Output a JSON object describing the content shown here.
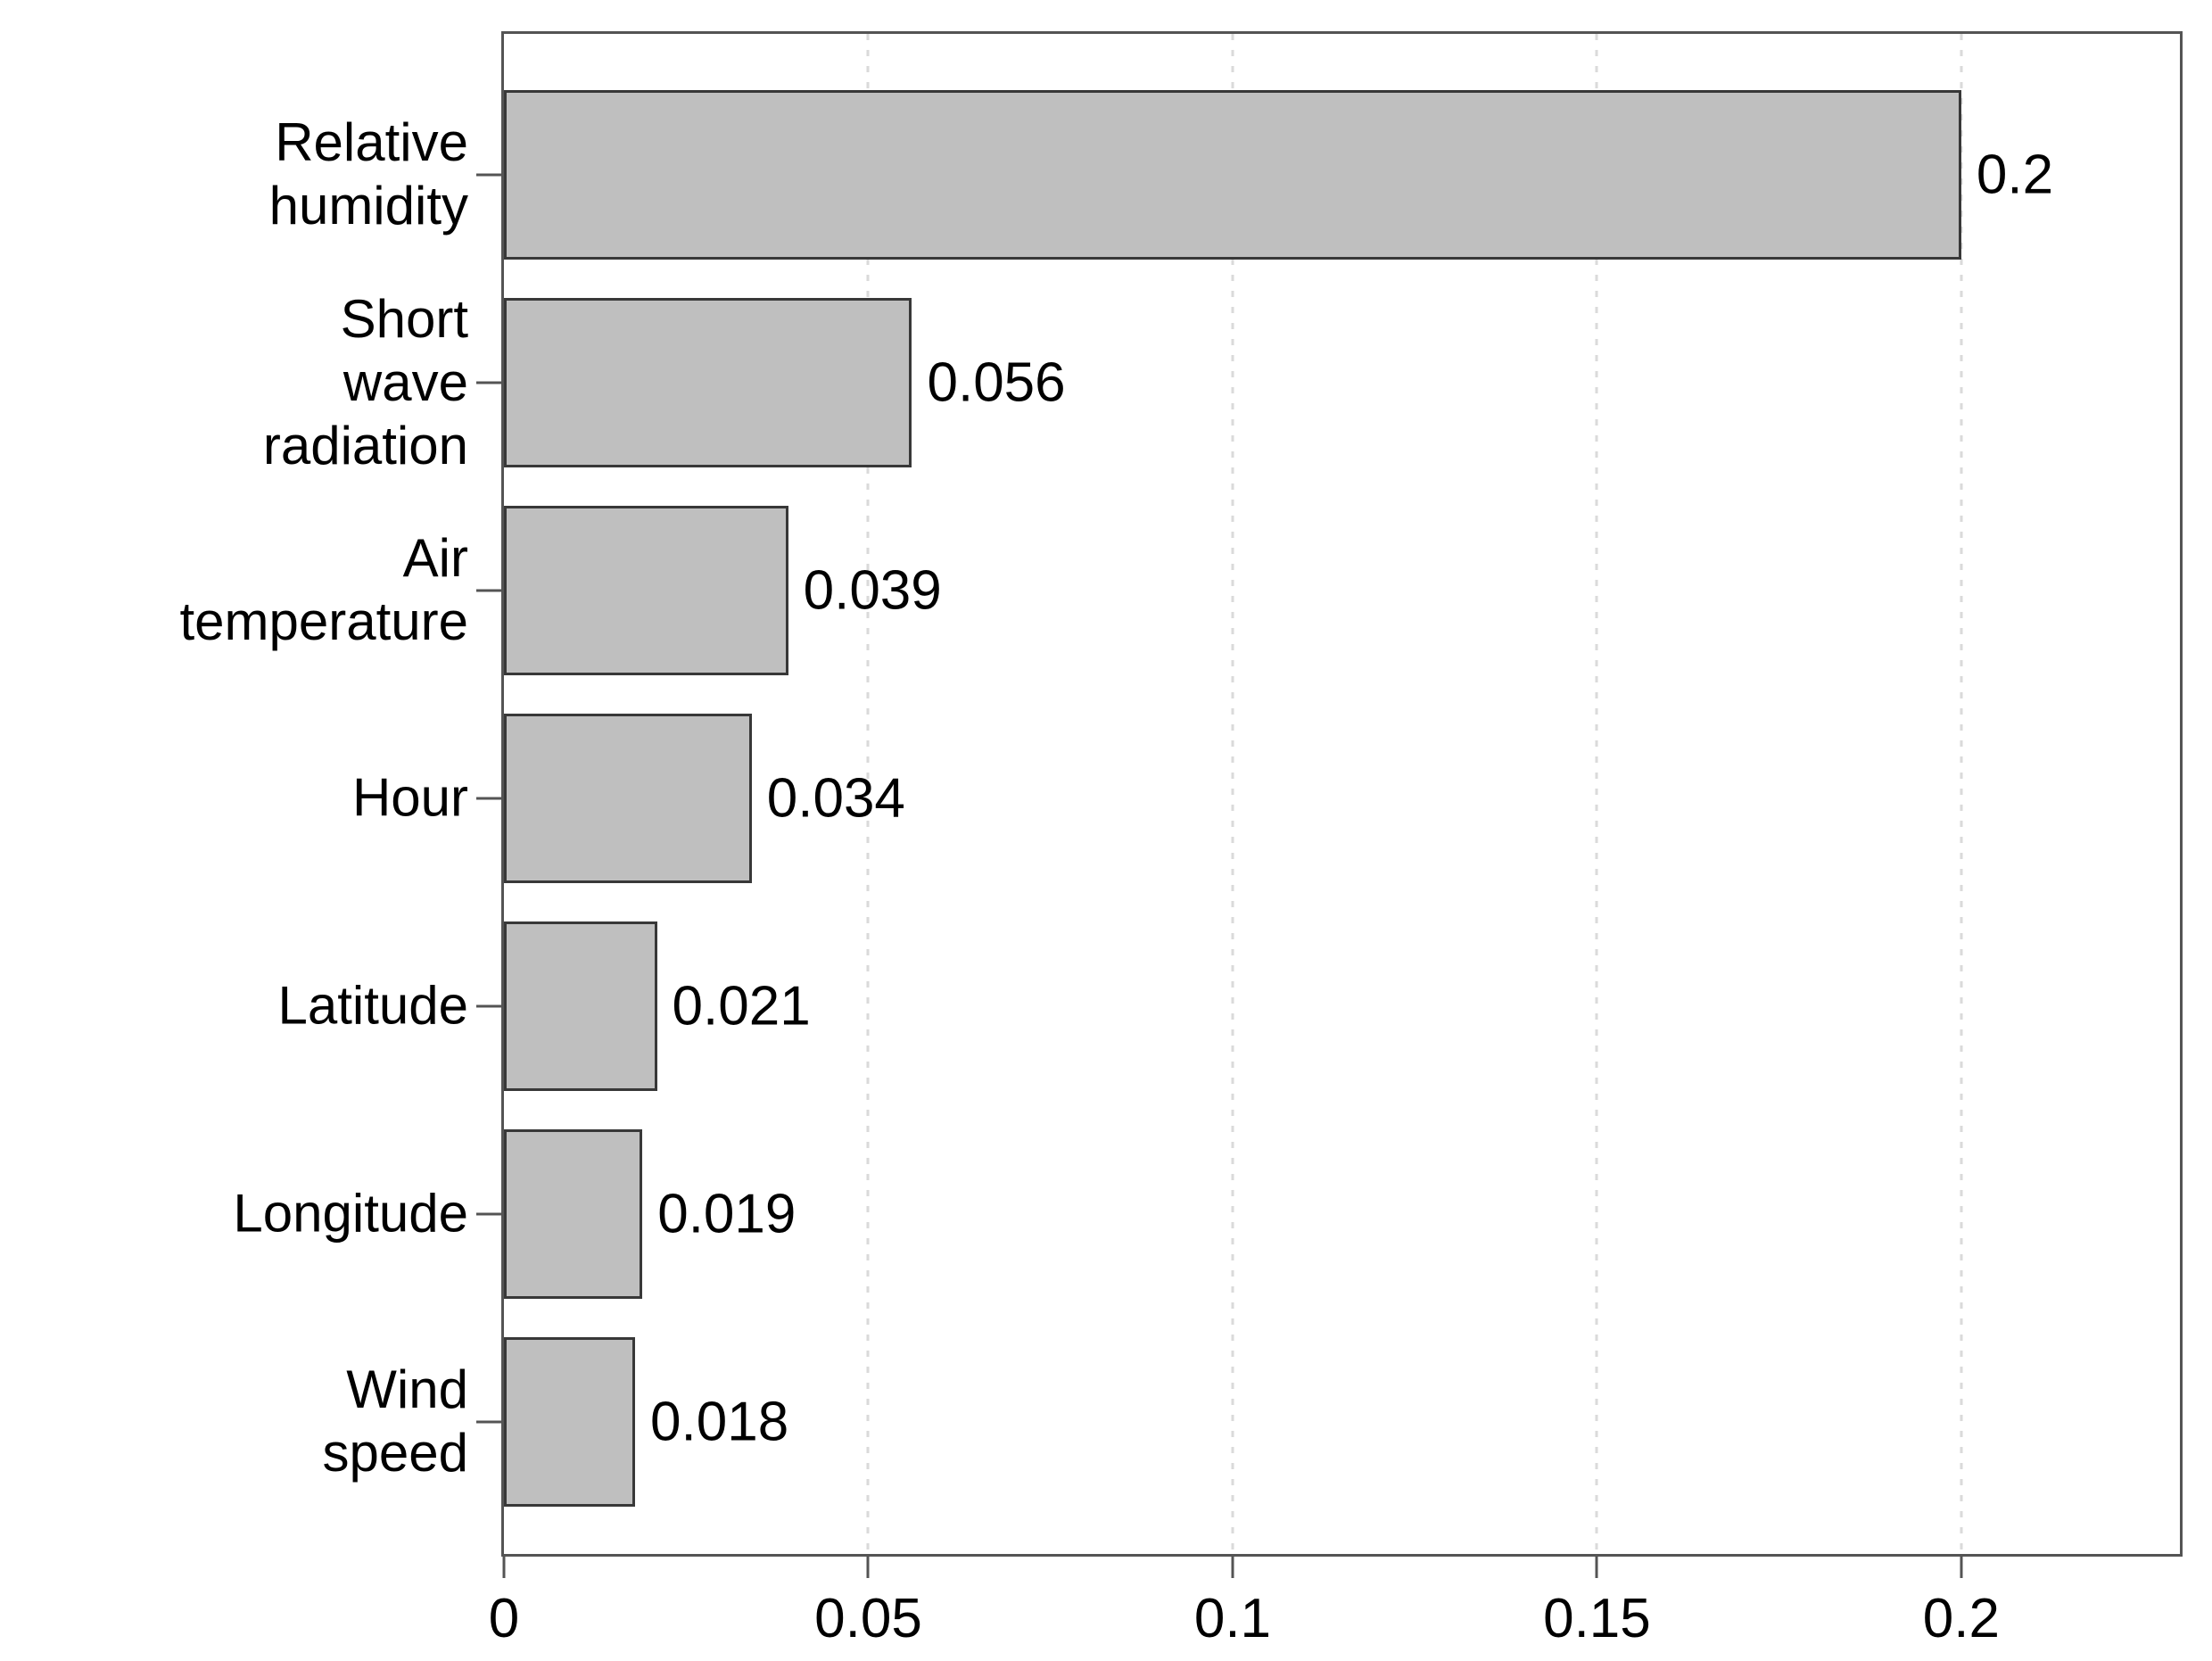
{
  "chart_data": {
    "type": "bar",
    "orientation": "horizontal",
    "title": "",
    "xlabel": "",
    "ylabel": "",
    "xlim": [
      0,
      0.23
    ],
    "grid": "vertical dotted gridlines at each x tick",
    "legend": "none",
    "x_ticks": {
      "values": [
        0,
        0.05,
        0.1,
        0.15,
        0.2
      ],
      "labels": [
        "0",
        "0.05",
        "0.1",
        "0.15",
        "0.2"
      ]
    },
    "categories": [
      "Relative humidity",
      "Short wave\nradiation",
      "Air temperature",
      "Hour",
      "Latitude",
      "Longitude",
      "Wind speed"
    ],
    "values": [
      0.2,
      0.056,
      0.039,
      0.034,
      0.021,
      0.019,
      0.018
    ],
    "rows": [
      {
        "category": "Relative humidity",
        "value": 0.2,
        "value_label": "0.2"
      },
      {
        "category": "Short wave\nradiation",
        "value": 0.056,
        "value_label": "0.056"
      },
      {
        "category": "Air temperature",
        "value": 0.039,
        "value_label": "0.039"
      },
      {
        "category": "Hour",
        "value": 0.034,
        "value_label": "0.034"
      },
      {
        "category": "Latitude",
        "value": 0.021,
        "value_label": "0.021"
      },
      {
        "category": "Longitude",
        "value": 0.019,
        "value_label": "0.019"
      },
      {
        "category": "Wind speed",
        "value": 0.018,
        "value_label": "0.018"
      }
    ],
    "colors": {
      "bar_fill": "#bfbfbf",
      "bar_border": "#383838",
      "plot_border": "#545454",
      "gridline": "#dadada",
      "text": "#000000",
      "background": "#ffffff"
    }
  }
}
